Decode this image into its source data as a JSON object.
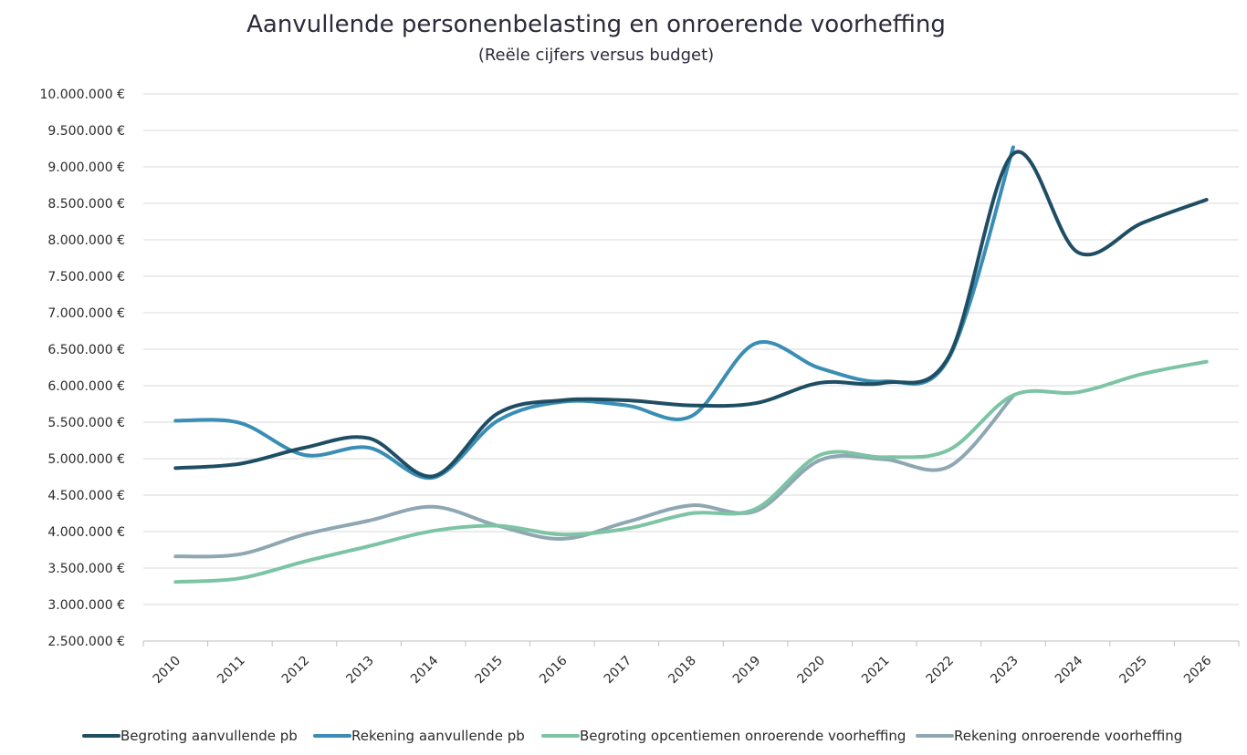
{
  "chart_data": {
    "type": "line",
    "title": "Aanvullende personenbelasting en onroerende voorheffing",
    "subtitle": "(Reële cijfers versus budget)",
    "xlabel": "",
    "ylabel": "",
    "ylim": [
      2500000,
      10000000
    ],
    "yticks": [
      2500000,
      3000000,
      3500000,
      4000000,
      4500000,
      5000000,
      5500000,
      6000000,
      6500000,
      7000000,
      7500000,
      8000000,
      8500000,
      9000000,
      9500000,
      10000000
    ],
    "ytick_labels": [
      "2.500.000 €",
      "3.000.000 €",
      "3.500.000 €",
      "4.000.000 €",
      "4.500.000 €",
      "5.000.000 €",
      "5.500.000 €",
      "6.000.000 €",
      "6.500.000 €",
      "7.000.000 €",
      "7.500.000 €",
      "8.000.000 €",
      "8.500.000 €",
      "9.000.000 €",
      "9.500.000 €",
      "10.000.000 €"
    ],
    "categories": [
      "2010",
      "2011",
      "2012",
      "2013",
      "2014",
      "2015",
      "2016",
      "2017",
      "2018",
      "2019",
      "2020",
      "2021",
      "2022",
      "2023",
      "2024",
      "2025",
      "2026"
    ],
    "grid": true,
    "legend_position": "bottom",
    "series": [
      {
        "name": "Begroting aanvullende pb",
        "color": "#1f4e64",
        "values": [
          4870000,
          4930000,
          5150000,
          5280000,
          4760000,
          5620000,
          5800000,
          5800000,
          5730000,
          5760000,
          6040000,
          6040000,
          6400000,
          9180000,
          7830000,
          8230000,
          8550000
        ]
      },
      {
        "name": "Rekening aanvullende pb",
        "color": "#3a8db4",
        "values": [
          5520000,
          5490000,
          5050000,
          5150000,
          4740000,
          5520000,
          5780000,
          5730000,
          5580000,
          6580000,
          6240000,
          6060000,
          6380000,
          9270000,
          null,
          null,
          null
        ]
      },
      {
        "name": "Begroting opcentiemen onroerende voorheffing",
        "color": "#7dc4a4",
        "values": [
          3310000,
          3360000,
          3590000,
          3800000,
          4010000,
          4080000,
          3960000,
          4040000,
          4250000,
          4310000,
          5050000,
          5020000,
          5120000,
          5870000,
          5910000,
          6160000,
          6330000
        ]
      },
      {
        "name": "Rekening onroerende voorheffing",
        "color": "#8ea7b3",
        "values": [
          3660000,
          3690000,
          3960000,
          4150000,
          4340000,
          4080000,
          3900000,
          4130000,
          4360000,
          4280000,
          4980000,
          4990000,
          4890000,
          5860000,
          null,
          null,
          null
        ]
      }
    ]
  }
}
